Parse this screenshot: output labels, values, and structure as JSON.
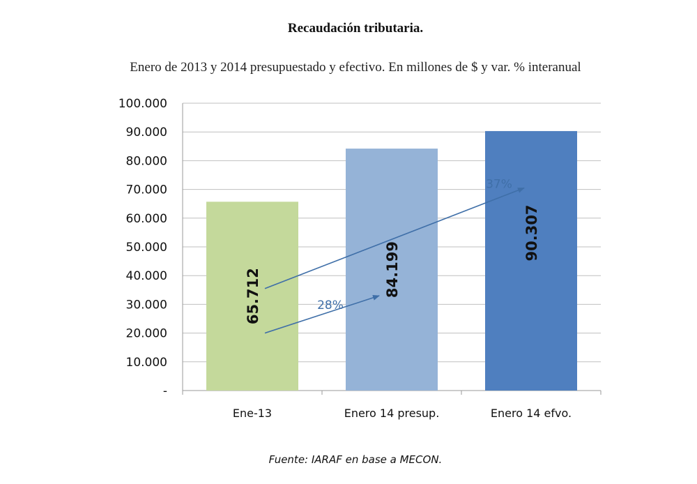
{
  "chart_data": {
    "type": "bar",
    "title": "Recaudación tributaria.",
    "subtitle": "Enero de 2013 y 2014 presupuestado y efectivo. En millones de $ y var. % interanual",
    "categories": [
      "Ene-13",
      "Enero 14 presup.",
      "Enero 14 efvo."
    ],
    "values": [
      65712,
      84199,
      90307
    ],
    "value_labels": [
      "65.712",
      "84.199",
      "90.307"
    ],
    "colors": [
      "#c4d99b",
      "#95b3d7",
      "#4f7fbf"
    ],
    "ylim": [
      0,
      100000
    ],
    "yticks": [
      0,
      10000,
      20000,
      30000,
      40000,
      50000,
      60000,
      70000,
      80000,
      90000,
      100000
    ],
    "ytick_labels": [
      "-",
      "10.000",
      "20.000",
      "30.000",
      "40.000",
      "50.000",
      "60.000",
      "70.000",
      "80.000",
      "90.000",
      "100.000"
    ],
    "grid": true,
    "annotations": [
      {
        "text": "28%",
        "from": "Ene-13",
        "to": "Enero 14 presup."
      },
      {
        "text": "37%",
        "from": "Ene-13",
        "to": "Enero 14 efvo."
      }
    ],
    "annotation_color": "#3f6fa8",
    "source": "Fuente: IARAF en base a MECON."
  }
}
